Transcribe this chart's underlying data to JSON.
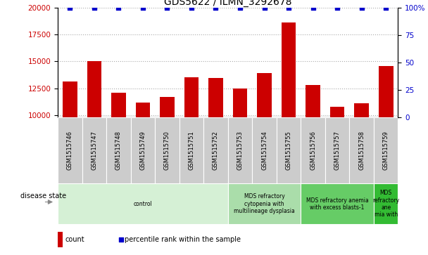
{
  "title": "GDS5622 / ILMN_3292678",
  "samples": [
    "GSM1515746",
    "GSM1515747",
    "GSM1515748",
    "GSM1515749",
    "GSM1515750",
    "GSM1515751",
    "GSM1515752",
    "GSM1515753",
    "GSM1515754",
    "GSM1515755",
    "GSM1515756",
    "GSM1515757",
    "GSM1515758",
    "GSM1515759"
  ],
  "counts": [
    13100,
    15000,
    12100,
    11200,
    11700,
    13500,
    13450,
    12500,
    13900,
    18600,
    12800,
    10800,
    11100,
    14600
  ],
  "percentile_ranks": [
    100,
    100,
    100,
    100,
    100,
    100,
    100,
    100,
    100,
    100,
    100,
    100,
    100,
    100
  ],
  "ylim_left": [
    9800,
    20000
  ],
  "ylim_right": [
    0,
    100
  ],
  "yticks_left": [
    10000,
    12500,
    15000,
    17500,
    20000
  ],
  "yticks_right": [
    0,
    25,
    50,
    75,
    100
  ],
  "bar_color": "#cc0000",
  "scatter_color": "#0000cc",
  "bar_width": 0.6,
  "grid_color": "#aaaaaa",
  "disease_groups": [
    {
      "label": "control",
      "start": 0,
      "end": 7,
      "color": "#d5f0d5"
    },
    {
      "label": "MDS refractory\ncytopenia with\nmultilineage dysplasia",
      "start": 7,
      "end": 10,
      "color": "#aaddaa"
    },
    {
      "label": "MDS refractory anemia\nwith excess blasts-1",
      "start": 10,
      "end": 13,
      "color": "#66cc66"
    },
    {
      "label": "MDS\nrefractory\nane\nmia with",
      "start": 13,
      "end": 14,
      "color": "#33bb33"
    }
  ],
  "xlabel_color": "#cc0000",
  "ylabel_right_color": "#0000cc",
  "tick_label_bg": "#cccccc",
  "disease_state_label": "disease state",
  "legend_count_label": "count",
  "legend_percentile_label": "percentile rank within the sample",
  "title_fontsize": 10,
  "tick_fontsize": 7.5,
  "sample_fontsize": 6,
  "disease_fontsize": 5.5,
  "legend_fontsize": 7
}
